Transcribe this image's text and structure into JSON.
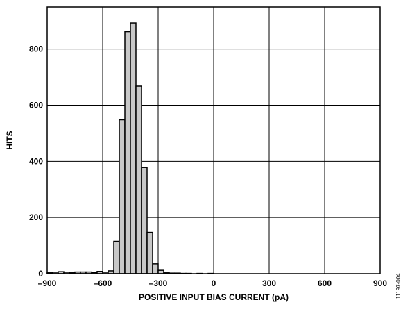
{
  "chart_data": {
    "type": "bar",
    "subtype": "histogram",
    "xlabel": "POSITIVE INPUT BIAS CURRENT (pA)",
    "ylabel": "HITS",
    "xlim": [
      -900,
      900
    ],
    "ylim": [
      0,
      950
    ],
    "xticks": [
      -900,
      -600,
      -300,
      0,
      300,
      600,
      900
    ],
    "xtick_labels": [
      "–900",
      "–600",
      "–300",
      "0",
      "300",
      "600",
      "900"
    ],
    "yticks": [
      0,
      200,
      400,
      600,
      800
    ],
    "ytick_labels": [
      "0",
      "200",
      "400",
      "600",
      "800"
    ],
    "grid": true,
    "bin_width": 30,
    "bins": [
      {
        "start": -900,
        "count": 3
      },
      {
        "start": -870,
        "count": 5
      },
      {
        "start": -840,
        "count": 7
      },
      {
        "start": -810,
        "count": 5
      },
      {
        "start": -780,
        "count": 3
      },
      {
        "start": -750,
        "count": 6
      },
      {
        "start": -720,
        "count": 6
      },
      {
        "start": -690,
        "count": 6
      },
      {
        "start": -660,
        "count": 4
      },
      {
        "start": -630,
        "count": 8
      },
      {
        "start": -600,
        "count": 5
      },
      {
        "start": -570,
        "count": 10
      },
      {
        "start": -540,
        "count": 115
      },
      {
        "start": -510,
        "count": 548
      },
      {
        "start": -480,
        "count": 862
      },
      {
        "start": -450,
        "count": 893
      },
      {
        "start": -420,
        "count": 668
      },
      {
        "start": -390,
        "count": 378
      },
      {
        "start": -360,
        "count": 147
      },
      {
        "start": -330,
        "count": 35
      },
      {
        "start": -300,
        "count": 12
      },
      {
        "start": -270,
        "count": 3
      },
      {
        "start": -240,
        "count": 2
      },
      {
        "start": -210,
        "count": 2
      },
      {
        "start": -180,
        "count": 1
      },
      {
        "start": -150,
        "count": 1
      },
      {
        "start": -90,
        "count": 1
      },
      {
        "start": -30,
        "count": 1
      }
    ],
    "bar_color": "#c8c8c8",
    "edge_color": "#000000",
    "figure_code": "11197-004"
  }
}
